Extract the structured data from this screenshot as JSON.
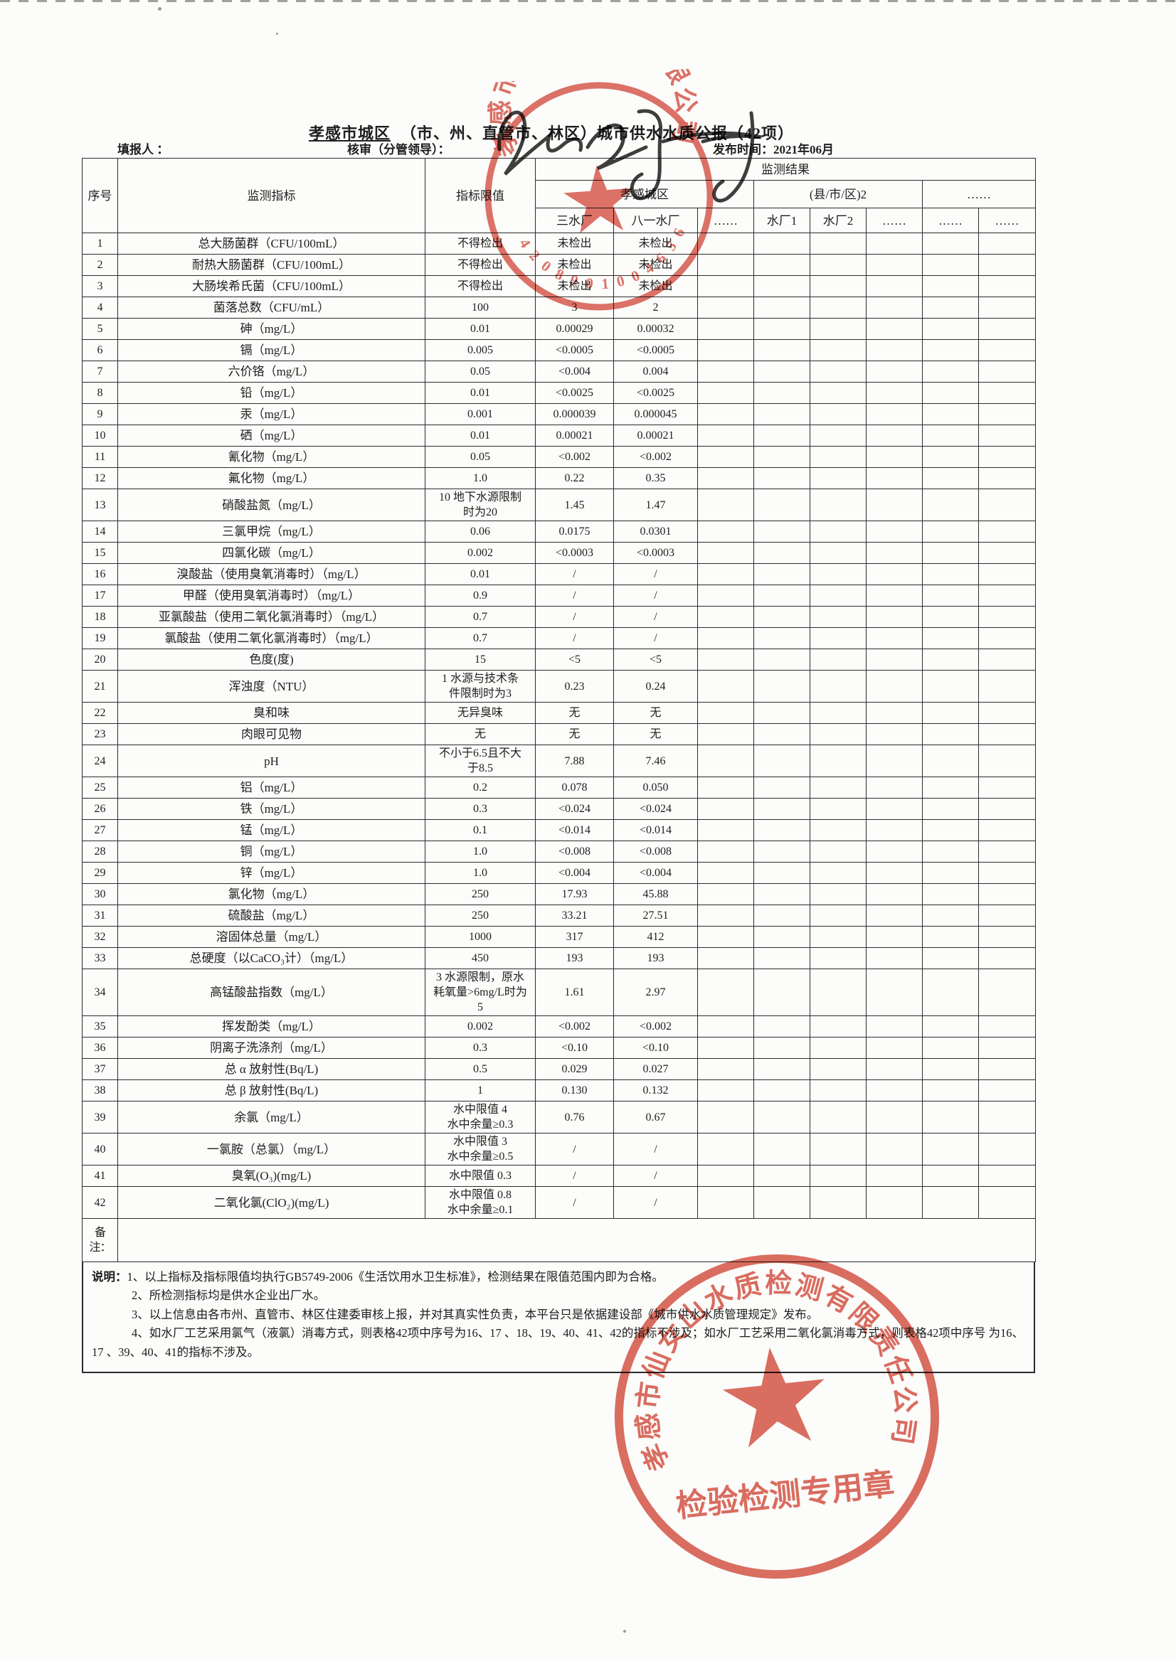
{
  "header": {
    "title_region": "孝感市城区",
    "title_rest": "（市、州、直管市、林区）城市供水水质公报（42项）",
    "filler_label": "填报人 ：",
    "reviewer_label": "核审（分管领导）：",
    "publish_time": "发布时间：2021年06月"
  },
  "table": {
    "col_seq": "序号",
    "col_indicator": "监测指标",
    "col_limit": "指标限值",
    "col_result": "监测结果",
    "group_city": "孝感城区",
    "group_county": "(县/市/区)2",
    "group_more": "……",
    "plants": [
      "三水厂",
      "八一水厂",
      "……",
      "水厂1",
      "水厂2",
      "……",
      "……",
      "……"
    ],
    "remark_label": "备注：",
    "rows": [
      [
        "1",
        "总大肠菌群（CFU/100mL）",
        "不得检出",
        "未检出",
        "未检出"
      ],
      [
        "2",
        "耐热大肠菌群（CFU/100mL）",
        "不得检出",
        "未检出",
        "未检出"
      ],
      [
        "3",
        "大肠埃希氏菌（CFU/100mL）",
        "不得检出",
        "未检出",
        "未检出"
      ],
      [
        "4",
        "菌落总数（CFU/mL）",
        "100",
        "3",
        "2"
      ],
      [
        "5",
        "砷（mg/L）",
        "0.01",
        "0.00029",
        "0.00032"
      ],
      [
        "6",
        "镉（mg/L）",
        "0.005",
        "<0.0005",
        "<0.0005"
      ],
      [
        "7",
        "六价铬（mg/L）",
        "0.05",
        "<0.004",
        "0.004"
      ],
      [
        "8",
        "铅（mg/L）",
        "0.01",
        "<0.0025",
        "<0.0025"
      ],
      [
        "9",
        "汞（mg/L）",
        "0.001",
        "0.000039",
        "0.000045"
      ],
      [
        "10",
        "硒（mg/L）",
        "0.01",
        "0.00021",
        "0.00021"
      ],
      [
        "11",
        "氰化物（mg/L）",
        "0.05",
        "<0.002",
        "<0.002"
      ],
      [
        "12",
        "氟化物（mg/L）",
        "1.0",
        "0.22",
        "0.35"
      ],
      [
        "13",
        "硝酸盐氮（mg/L）",
        "10 地下水源限制\n时为20",
        "1.45",
        "1.47"
      ],
      [
        "14",
        "三氯甲烷（mg/L）",
        "0.06",
        "0.0175",
        "0.0301"
      ],
      [
        "15",
        "四氯化碳（mg/L）",
        "0.002",
        "<0.0003",
        "<0.0003"
      ],
      [
        "16",
        "溴酸盐（使用臭氧消毒时）（mg/L）",
        "0.01",
        "/",
        "/"
      ],
      [
        "17",
        "甲醛（使用臭氧消毒时）（mg/L）",
        "0.9",
        "/",
        "/"
      ],
      [
        "18",
        "亚氯酸盐（使用二氧化氯消毒时）（mg/L）",
        "0.7",
        "/",
        "/"
      ],
      [
        "19",
        "氯酸盐（使用二氧化氯消毒时）（mg/L）",
        "0.7",
        "/",
        "/"
      ],
      [
        "20",
        "色度(度)",
        "15",
        "<5",
        "<5"
      ],
      [
        "21",
        "浑浊度（NTU）",
        "1  水源与技术条\n件限制时为3",
        "0.23",
        "0.24"
      ],
      [
        "22",
        "臭和味",
        "无异臭味",
        "无",
        "无"
      ],
      [
        "23",
        "肉眼可见物",
        "无",
        "无",
        "无"
      ],
      [
        "24",
        "pH",
        "不小于6.5且不大\n于8.5",
        "7.88",
        "7.46"
      ],
      [
        "25",
        "铝（mg/L）",
        "0.2",
        "0.078",
        "0.050"
      ],
      [
        "26",
        "铁（mg/L）",
        "0.3",
        "<0.024",
        "<0.024"
      ],
      [
        "27",
        "锰（mg/L）",
        "0.1",
        "<0.014",
        "<0.014"
      ],
      [
        "28",
        "铜（mg/L）",
        "1.0",
        "<0.008",
        "<0.008"
      ],
      [
        "29",
        "锌（mg/L）",
        "1.0",
        "<0.004",
        "<0.004"
      ],
      [
        "30",
        "氯化物（mg/L）",
        "250",
        "17.93",
        "45.88"
      ],
      [
        "31",
        "硫酸盐（mg/L）",
        "250",
        "33.21",
        "27.51"
      ],
      [
        "32",
        "溶固体总量（mg/L）",
        "1000",
        "317",
        "412"
      ],
      [
        "33",
        "总硬度（以CaCO₃计）（mg/L）",
        "450",
        "193",
        "193"
      ],
      [
        "34",
        "高锰酸盐指数（mg/L）",
        "3 水源限制，原水\n耗氧量>6mg/L时为\n5",
        "1.61",
        "2.97"
      ],
      [
        "35",
        "挥发酚类（mg/L）",
        "0.002",
        "<0.002",
        "<0.002"
      ],
      [
        "36",
        "阴离子洗涤剂（mg/L）",
        "0.3",
        "<0.10",
        "<0.10"
      ],
      [
        "37",
        "总 α 放射性(Bq/L)",
        "0.5",
        "0.029",
        "0.027"
      ],
      [
        "38",
        "总 β 放射性(Bq/L)",
        "1",
        "0.130",
        "0.132"
      ],
      [
        "39",
        "余氯（mg/L）",
        "水中限值 4\n水中余量≥0.3",
        "0.76",
        "0.67"
      ],
      [
        "40",
        "一氯胺（总氯）（mg/L）",
        "水中限值 3\n水中余量≥0.5",
        "/",
        "/"
      ],
      [
        "41",
        "臭氧(O₃)(mg/L)",
        "水中限值 0.3",
        "/",
        "/"
      ],
      [
        "42",
        "二氧化氯(ClO₂)(mg/L)",
        "水中限值 0.8\n水中余量≥0.1",
        "/",
        "/"
      ]
    ]
  },
  "notes": {
    "label": "说明：",
    "lines": [
      "1、以上指标及指标限值均执行GB5749-2006《生活饮用水卫生标准》，检测结果在限值范围内即为合格。",
      "2、所检测指标均是供水企业出厂水。",
      "3、以上信息由各市州、直管市、林区住建委审核上报，并对其真实性负责，本平台只是依据建设部《城市供水水质管理规定》发布。",
      "4、如水厂工艺采用氯气（液氯）消毒方式，则表格42项中序号为16、17 、18、19、40、41、42的指标不涉及；如水厂工艺采用二氧化氯消毒方式，则表格42项中序号 为16、17 、39、40、41的指标不涉及。"
    ]
  },
  "stamps": {
    "top": {
      "company": "孝感市仙女山水务有限公司",
      "code": "4208901004656"
    },
    "bottom": {
      "company": "孝感市仙女山水质检测有限责任公司",
      "label": "检验检测专用章"
    }
  },
  "colors": {
    "stamp_red": "#d5493c",
    "ink": "#1e1e1e",
    "border": "#2b2b2b"
  }
}
